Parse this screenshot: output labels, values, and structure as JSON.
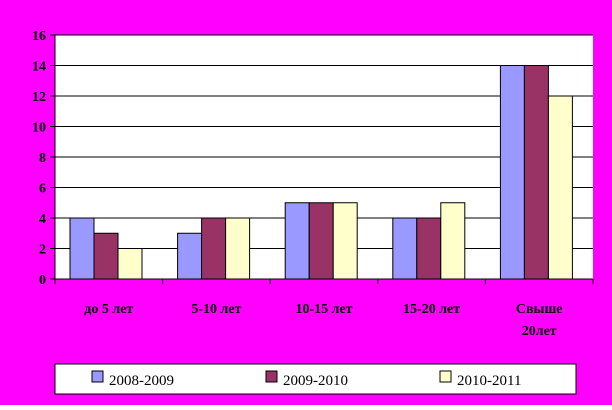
{
  "background_color": "#FF00FF",
  "plot_background": "#FFFFFF",
  "chart_data": {
    "type": "bar",
    "categories": [
      "до 5 лет",
      "5-10 лет",
      "10-15 лет",
      "15-20 лет",
      "Свыше 20лет"
    ],
    "category_lines": [
      [
        "до 5 лет"
      ],
      [
        "5-10 лет"
      ],
      [
        "10-15 лет"
      ],
      [
        "15-20 лет"
      ],
      [
        "Свыше",
        "20лет"
      ]
    ],
    "series": [
      {
        "name": "2008-2009",
        "color": "#9999FF",
        "values": [
          4,
          3,
          5,
          4,
          14
        ]
      },
      {
        "name": "2009-2010",
        "color": "#993366",
        "values": [
          3,
          4,
          5,
          4,
          14
        ]
      },
      {
        "name": "2010-2011",
        "color": "#FFFFCC",
        "values": [
          2,
          4,
          5,
          5,
          12
        ]
      }
    ],
    "ylim": [
      0,
      16
    ],
    "yticks": [
      "0",
      "2",
      "4",
      "6",
      "8",
      "10",
      "12",
      "14",
      "16"
    ],
    "title": "",
    "xlabel": "",
    "ylabel": "",
    "grid": true,
    "legend_position": "bottom"
  }
}
